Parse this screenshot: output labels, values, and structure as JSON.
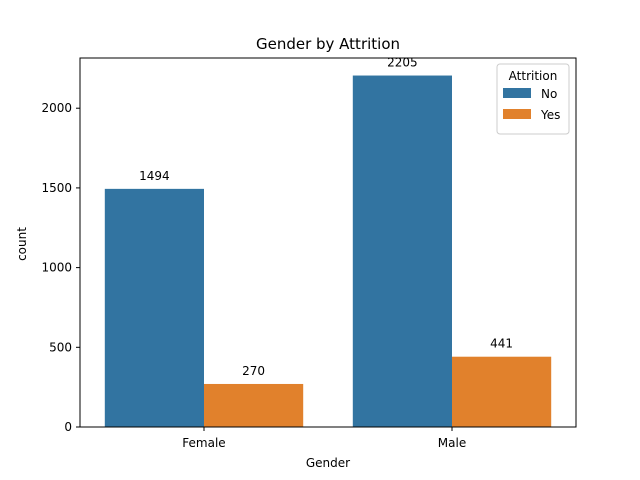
{
  "chart_data": {
    "type": "bar",
    "title": "Gender by Attrition",
    "xlabel": "Gender",
    "ylabel": "count",
    "categories": [
      "Female",
      "Male"
    ],
    "series": [
      {
        "name": "No",
        "color": "#3274a1",
        "values": [
          1494,
          2205
        ]
      },
      {
        "name": "Yes",
        "color": "#e1812c",
        "values": [
          270,
          441
        ]
      }
    ],
    "ylim": [
      0,
      2315
    ],
    "yticks": [
      0,
      500,
      1000,
      1500,
      2000
    ],
    "legend": {
      "title": "Attrition",
      "placement": "top-right"
    },
    "grid": false
  }
}
